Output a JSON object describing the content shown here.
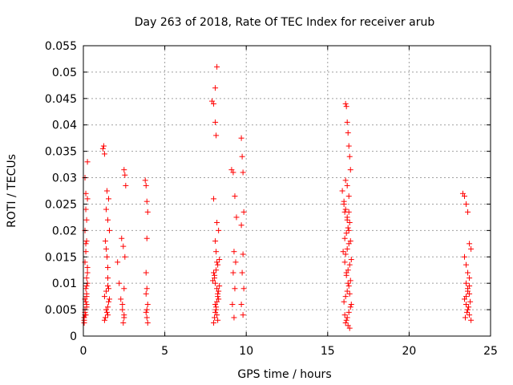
{
  "chart_data": {
    "type": "scatter",
    "title": "Day 263 of 2018, Rate Of TEC Index for receiver arub",
    "xlabel": "GPS time / hours",
    "ylabel": "ROTI / TECUs",
    "xlim": [
      0,
      25
    ],
    "ylim": [
      0,
      0.055
    ],
    "xticks": [
      0,
      5,
      10,
      15,
      20,
      25
    ],
    "xtick_labels": [
      "0",
      "5",
      "10",
      "15",
      "20",
      "25"
    ],
    "yticks": [
      0,
      0.005,
      0.01,
      0.015,
      0.02,
      0.025,
      0.03,
      0.035,
      0.04,
      0.045,
      0.05,
      0.055
    ],
    "ytick_labels": [
      "0",
      "0.005",
      "0.01",
      "0.015",
      "0.02",
      "0.025",
      "0.03",
      "0.035",
      "0.04",
      "0.045",
      "0.05",
      "0.055"
    ],
    "grid": true,
    "marker": "+",
    "color": "#ff0000",
    "series": [
      {
        "name": "ROTI",
        "x": [
          0.05,
          0.1,
          0.1,
          0.15,
          0.15,
          0.2,
          0.2,
          0.25,
          0.25,
          0.1,
          0.15,
          0.2,
          0.1,
          0.2,
          0.15,
          0.25,
          0.05,
          0.1,
          0.2,
          0.15,
          0.2,
          0.25,
          0.1,
          0.15,
          0.2,
          0.25,
          0.05,
          0.1,
          0.2,
          0.15,
          1.2,
          1.25,
          1.3,
          1.35,
          1.4,
          1.45,
          1.5,
          1.5,
          1.55,
          1.6,
          1.4,
          1.5,
          1.3,
          1.45,
          1.55,
          1.4,
          1.5,
          1.6,
          1.35,
          1.45,
          1.5,
          1.55,
          1.3,
          1.4,
          1.5,
          2.1,
          2.2,
          2.3,
          2.4,
          2.5,
          2.5,
          2.55,
          2.6,
          2.35,
          2.45,
          2.55,
          2.5,
          2.4,
          2.5,
          2.45,
          3.8,
          3.85,
          3.9,
          3.95,
          3.9,
          3.85,
          3.9,
          3.95,
          3.85,
          3.9,
          3.95,
          3.9,
          3.85,
          7.9,
          8.0,
          8.1,
          8.15,
          8.2,
          8.1,
          8.0,
          8.2,
          8.3,
          8.1,
          8.15,
          8.2,
          8.0,
          8.05,
          8.1,
          8.2,
          8.25,
          8.3,
          8.1,
          8.15,
          8.2,
          8.25,
          8.0,
          8.05,
          8.1,
          8.15,
          8.2,
          8.25,
          8.3,
          8.35,
          7.95,
          8.05,
          8.15,
          8.25,
          8.35,
          9.1,
          9.2,
          9.3,
          9.4,
          9.25,
          9.35,
          9.2,
          9.3,
          9.15,
          9.25,
          9.7,
          9.75,
          9.8,
          9.85,
          9.7,
          9.8,
          9.75,
          9.85,
          9.7,
          9.8,
          15.9,
          16.0,
          16.05,
          16.1,
          16.15,
          16.2,
          16.25,
          16.3,
          16.35,
          16.4,
          16.1,
          16.2,
          16.3,
          16.0,
          16.1,
          16.2,
          16.3,
          16.4,
          15.95,
          16.05,
          16.15,
          16.25,
          16.35,
          16.45,
          16.05,
          16.15,
          16.25,
          16.35,
          16.1,
          16.2,
          16.3,
          16.4,
          16.0,
          16.1,
          16.2,
          16.3,
          16.4,
          16.15,
          16.25,
          16.35,
          16.45,
          16.1,
          16.2,
          16.3,
          16.05,
          16.15,
          16.25,
          16.35,
          16.2,
          16.3,
          23.3,
          23.4,
          23.5,
          23.6,
          23.7,
          23.8,
          23.4,
          23.5,
          23.6,
          23.7,
          23.5,
          23.6,
          23.7,
          23.4,
          23.5,
          23.6,
          23.7,
          23.8,
          23.45,
          23.55,
          23.65,
          23.75,
          23.5,
          23.6,
          23.7
        ],
        "y": [
          0.003,
          0.005,
          0.007,
          0.009,
          0.004,
          0.006,
          0.008,
          0.01,
          0.012,
          0.014,
          0.016,
          0.018,
          0.02,
          0.022,
          0.024,
          0.026,
          0.0035,
          0.0045,
          0.0055,
          0.0065,
          0.0075,
          0.033,
          0.03,
          0.027,
          0.011,
          0.013,
          0.0025,
          0.004,
          0.0095,
          0.0175,
          0.0355,
          0.036,
          0.0345,
          0.018,
          0.0165,
          0.015,
          0.013,
          0.011,
          0.009,
          0.007,
          0.005,
          0.004,
          0.003,
          0.0275,
          0.026,
          0.024,
          0.022,
          0.02,
          0.0035,
          0.0045,
          0.0055,
          0.0065,
          0.0075,
          0.0085,
          0.0095,
          0.014,
          0.01,
          0.007,
          0.005,
          0.004,
          0.0315,
          0.0305,
          0.0285,
          0.0185,
          0.017,
          0.015,
          0.009,
          0.006,
          0.0035,
          0.0025,
          0.0295,
          0.0285,
          0.0255,
          0.0235,
          0.0185,
          0.012,
          0.009,
          0.006,
          0.0045,
          0.0035,
          0.0025,
          0.005,
          0.008,
          0.0445,
          0.044,
          0.0405,
          0.038,
          0.051,
          0.047,
          0.026,
          0.0215,
          0.02,
          0.018,
          0.016,
          0.014,
          0.012,
          0.011,
          0.01,
          0.009,
          0.008,
          0.007,
          0.006,
          0.005,
          0.004,
          0.003,
          0.0025,
          0.0035,
          0.0045,
          0.0055,
          0.0065,
          0.0075,
          0.0085,
          0.0095,
          0.0105,
          0.0115,
          0.0125,
          0.0135,
          0.0145,
          0.0315,
          0.031,
          0.0265,
          0.0225,
          0.016,
          0.014,
          0.012,
          0.009,
          0.006,
          0.0035,
          0.0375,
          0.034,
          0.031,
          0.0235,
          0.021,
          0.0155,
          0.012,
          0.009,
          0.006,
          0.004,
          0.0275,
          0.0255,
          0.0235,
          0.044,
          0.0435,
          0.0405,
          0.0385,
          0.036,
          0.034,
          0.0315,
          0.0295,
          0.0285,
          0.0265,
          0.025,
          0.024,
          0.022,
          0.02,
          0.018,
          0.016,
          0.014,
          0.012,
          0.01,
          0.008,
          0.006,
          0.004,
          0.003,
          0.002,
          0.0015,
          0.0025,
          0.0035,
          0.0045,
          0.0055,
          0.0065,
          0.0075,
          0.0085,
          0.0095,
          0.0105,
          0.0115,
          0.0125,
          0.0135,
          0.0145,
          0.0155,
          0.0165,
          0.0175,
          0.0185,
          0.0195,
          0.0205,
          0.0215,
          0.0225,
          0.0235,
          0.027,
          0.0265,
          0.025,
          0.0235,
          0.0175,
          0.0165,
          0.015,
          0.0135,
          0.012,
          0.011,
          0.01,
          0.009,
          0.008,
          0.007,
          0.006,
          0.005,
          0.004,
          0.003,
          0.0035,
          0.0045,
          0.0055,
          0.0065,
          0.0075,
          0.0085,
          0.0095
        ]
      }
    ]
  }
}
